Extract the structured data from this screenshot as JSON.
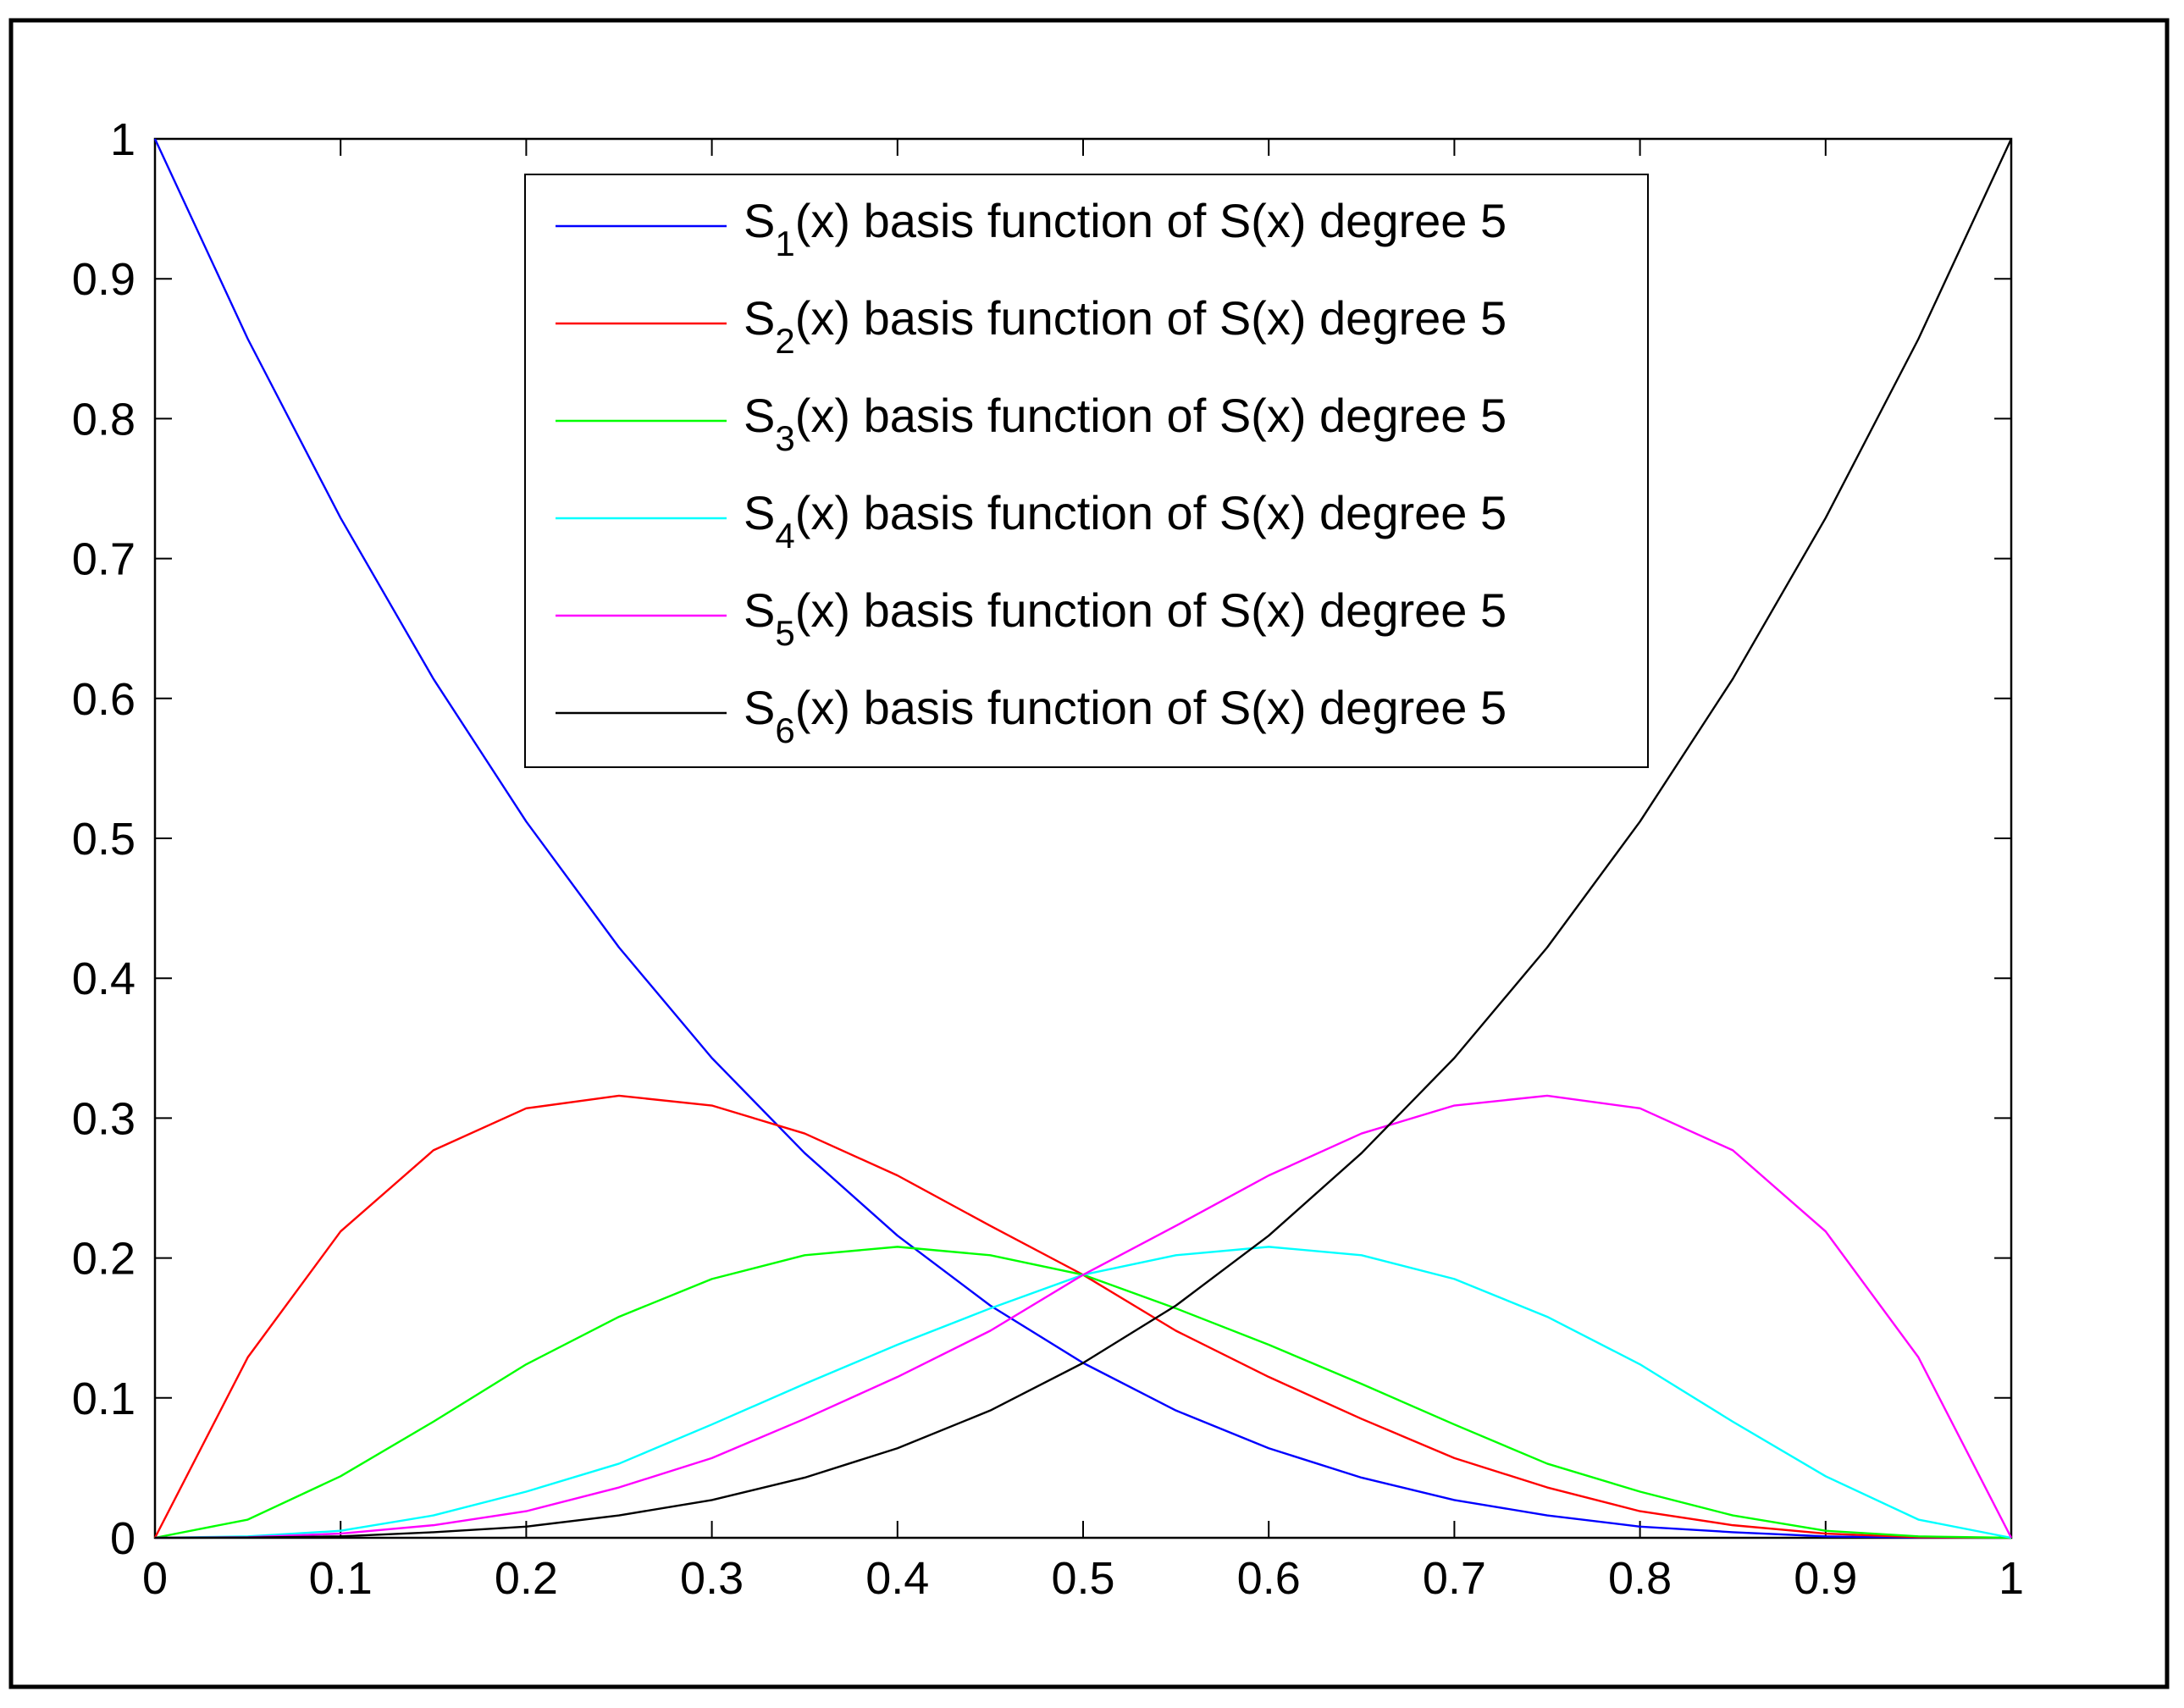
{
  "chart_data": {
    "type": "line",
    "title": "",
    "xlabel": "",
    "ylabel": "",
    "xlim": [
      0,
      1
    ],
    "ylim": [
      0,
      1
    ],
    "grid": false,
    "legend_position": "top-center",
    "x_ticks": [
      "0",
      "0.1",
      "0.2",
      "0.3",
      "0.4",
      "0.5",
      "0.6",
      "0.7",
      "0.8",
      "0.9",
      "1"
    ],
    "y_ticks": [
      "0",
      "0.1",
      "0.2",
      "0.3",
      "0.4",
      "0.5",
      "0.6",
      "0.7",
      "0.8",
      "0.9",
      "1"
    ],
    "x": [
      0,
      0.05,
      0.1,
      0.15,
      0.2,
      0.25,
      0.3,
      0.35,
      0.4,
      0.45,
      0.5,
      0.55,
      0.6,
      0.65,
      0.7,
      0.75,
      0.8,
      0.85,
      0.9,
      0.95,
      1
    ],
    "series": [
      {
        "name_prefix": "S",
        "name_sub": "1",
        "name_suffix": "(x) basis function of S(x) degree 5",
        "color": "#0000ff",
        "values": [
          1,
          0.857,
          0.729,
          0.614,
          0.512,
          0.422,
          0.343,
          0.275,
          0.216,
          0.166,
          0.125,
          0.091,
          0.064,
          0.043,
          0.027,
          0.016,
          0.008,
          0.004,
          0.001,
          0.0002,
          0
        ]
      },
      {
        "name_prefix": "S",
        "name_sub": "2",
        "name_suffix": "(x) basis function of S(x) degree 5",
        "color": "#ff0000",
        "values": [
          0,
          0.129,
          0.219,
          0.277,
          0.307,
          0.316,
          0.309,
          0.289,
          0.259,
          0.223,
          0.188,
          0.148,
          0.115,
          0.085,
          0.057,
          0.036,
          0.019,
          0.009,
          0.003,
          0.0004,
          0
        ]
      },
      {
        "name_prefix": "S",
        "name_sub": "3",
        "name_suffix": "(x) basis function of S(x) degree 5",
        "color": "#00ff00",
        "values": [
          0,
          0.013,
          0.044,
          0.083,
          0.124,
          0.158,
          0.185,
          0.202,
          0.208,
          0.202,
          0.188,
          0.164,
          0.138,
          0.11,
          0.081,
          0.053,
          0.033,
          0.016,
          0.005,
          0.001,
          0
        ]
      },
      {
        "name_prefix": "S",
        "name_sub": "4",
        "name_suffix": "(x) basis function of S(x) degree 5",
        "color": "#00ffff",
        "values": [
          0,
          0.001,
          0.005,
          0.016,
          0.033,
          0.053,
          0.081,
          0.11,
          0.138,
          0.164,
          0.188,
          0.202,
          0.208,
          0.202,
          0.185,
          0.158,
          0.124,
          0.083,
          0.044,
          0.013,
          0
        ]
      },
      {
        "name_prefix": "S",
        "name_sub": "5",
        "name_suffix": "(x) basis function of S(x) degree 5",
        "color": "#ff00ff",
        "values": [
          0,
          0.0004,
          0.003,
          0.009,
          0.019,
          0.036,
          0.057,
          0.085,
          0.115,
          0.148,
          0.188,
          0.223,
          0.259,
          0.289,
          0.309,
          0.316,
          0.307,
          0.277,
          0.219,
          0.129,
          0
        ]
      },
      {
        "name_prefix": "S",
        "name_sub": "6",
        "name_suffix": "(x) basis function of S(x) degree 5",
        "color": "#000000",
        "values": [
          0,
          0.0002,
          0.001,
          0.004,
          0.008,
          0.016,
          0.027,
          0.043,
          0.064,
          0.091,
          0.125,
          0.166,
          0.216,
          0.275,
          0.343,
          0.422,
          0.512,
          0.614,
          0.729,
          0.857,
          1
        ]
      }
    ]
  }
}
